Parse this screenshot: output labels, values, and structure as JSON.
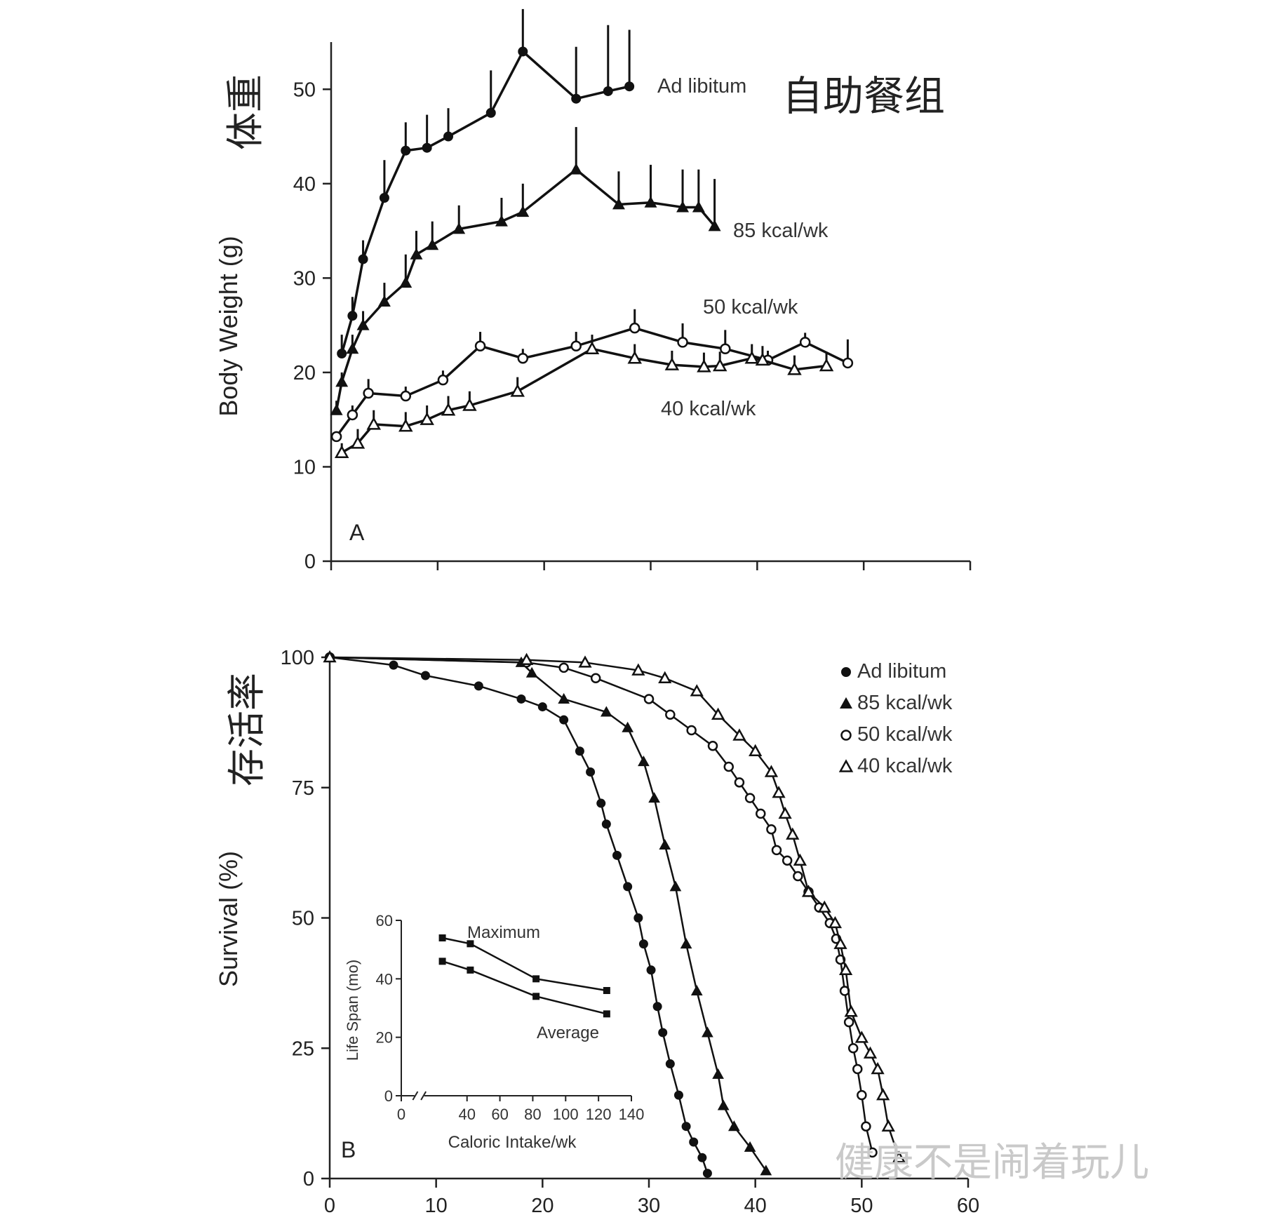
{
  "watermark": "健康不是闹着玩儿",
  "chart_data": [
    {
      "type": "line",
      "panel_label": "A",
      "ylabel": "Body Weight (g)",
      "ylabel_cn": "体重",
      "xlim": [
        0,
        60
      ],
      "ylim": [
        0,
        55
      ],
      "yticks": [
        0,
        10,
        20,
        30,
        40,
        50
      ],
      "grid": false,
      "annotations": [
        {
          "text": "Ad libitum",
          "x": 31,
          "y": 50.5
        },
        {
          "text": "自助餐组",
          "x": 42.5,
          "y": 50
        },
        {
          "text": "85 kcal/wk",
          "x": 38,
          "y": 35.5
        },
        {
          "text": "50 kcal/wk",
          "x": 35,
          "y": 26.5
        },
        {
          "text": "40 kcal/wk",
          "x": 31,
          "y": 16.5
        }
      ],
      "series": [
        {
          "name": "Ad libitum",
          "marker": "filled-circle",
          "x": [
            1,
            2,
            3,
            5,
            7,
            9,
            11,
            15,
            18,
            23,
            26,
            28
          ],
          "y": [
            22,
            26,
            32,
            38.5,
            43.5,
            43.8,
            45,
            47.5,
            54,
            49,
            49.8,
            50.3
          ],
          "err": [
            2,
            2,
            2,
            4,
            3,
            3.5,
            3,
            4.5,
            4.5,
            5.5,
            7,
            6
          ]
        },
        {
          "name": "85 kcal/wk",
          "marker": "filled-triangle",
          "x": [
            0.5,
            1,
            2,
            3,
            5,
            7,
            8,
            9.5,
            12,
            16,
            18,
            23,
            27,
            30,
            33,
            34.5,
            36
          ],
          "y": [
            16,
            19,
            22.5,
            25,
            27.5,
            29.5,
            32.5,
            33.5,
            35.2,
            36,
            37,
            41.5,
            37.8,
            38,
            37.5,
            37.5,
            35.5
          ],
          "err": [
            1,
            1,
            1.5,
            1.5,
            2,
            3,
            2.5,
            2.5,
            2.5,
            2.5,
            3,
            4.5,
            3.5,
            4,
            4,
            4,
            5
          ]
        },
        {
          "name": "50 kcal/wk",
          "marker": "open-circle",
          "x": [
            0.5,
            2,
            3.5,
            7,
            10.5,
            14,
            18,
            23,
            28.5,
            33,
            37,
            41,
            44.5,
            48.5
          ],
          "y": [
            13.2,
            15.5,
            17.8,
            17.5,
            19.2,
            22.8,
            21.5,
            22.8,
            24.7,
            23.2,
            22.5,
            21.3,
            23.2,
            21
          ],
          "err": [
            0,
            1,
            1.5,
            1,
            1,
            1.5,
            1,
            1.5,
            2,
            2,
            2,
            1,
            1,
            2.5
          ]
        },
        {
          "name": "40 kcal/wk",
          "marker": "open-triangle",
          "x": [
            1,
            2.5,
            4,
            7,
            9,
            11,
            13,
            17.5,
            24.5,
            28.5,
            32,
            35,
            36.5,
            39.5,
            40.5,
            43.5,
            46.5
          ],
          "y": [
            11.5,
            12.5,
            14.5,
            14.3,
            15,
            16,
            16.5,
            18,
            22.5,
            21.5,
            20.8,
            20.6,
            20.7,
            21.5,
            21.3,
            20.3,
            20.7
          ],
          "err": [
            1,
            1.5,
            1.5,
            1.5,
            1.5,
            1.5,
            1.5,
            1.5,
            1.5,
            1.5,
            1.5,
            1.5,
            1.5,
            1.5,
            1.5,
            1.5,
            1.5
          ]
        }
      ]
    },
    {
      "type": "line",
      "panel_label": "B",
      "ylabel": "Survival (%)",
      "ylabel_cn": "存活率",
      "xlim": [
        0,
        60
      ],
      "ylim": [
        0,
        100
      ],
      "xticks": [
        0,
        10,
        20,
        30,
        40,
        50,
        60
      ],
      "yticks": [
        0,
        25,
        50,
        75,
        100
      ],
      "grid": false,
      "legend": "top-right",
      "series": [
        {
          "name": "Ad libitum",
          "marker": "filled-circle",
          "x": [
            0,
            6,
            9,
            14,
            18,
            20,
            22,
            23.5,
            24.5,
            25.5,
            26,
            27,
            28,
            29,
            29.5,
            30.2,
            30.8,
            31.3,
            32,
            32.8,
            33.5,
            34.2,
            35,
            35.5
          ],
          "y": [
            100,
            98.5,
            96.5,
            94.5,
            92,
            90.5,
            88,
            82,
            78,
            72,
            68,
            62,
            56,
            50,
            45,
            40,
            33,
            28,
            22,
            16,
            10,
            7,
            4,
            1
          ]
        },
        {
          "name": "85 kcal/wk",
          "marker": "filled-triangle",
          "x": [
            0,
            18,
            19,
            22,
            26,
            28,
            29.5,
            30.5,
            31.5,
            32.5,
            33.5,
            34.5,
            35.5,
            36.5,
            37,
            38,
            39.5,
            41
          ],
          "y": [
            100,
            99,
            97,
            92,
            89.5,
            86.5,
            80,
            73,
            64,
            56,
            45,
            36,
            28,
            20,
            14,
            10,
            6,
            1.5
          ]
        },
        {
          "name": "50 kcal/wk",
          "marker": "open-circle",
          "x": [
            0,
            18.5,
            22,
            25,
            30,
            32,
            34,
            36,
            37.5,
            38.5,
            39.5,
            40.5,
            41.5,
            42,
            43,
            44,
            45,
            46,
            47,
            47.6,
            48,
            48.4,
            48.8,
            49.2,
            49.6,
            50,
            50.4,
            51
          ],
          "y": [
            100,
            99,
            98,
            96,
            92,
            89,
            86,
            83,
            79,
            76,
            73,
            70,
            67,
            63,
            61,
            58,
            55,
            52,
            49,
            46,
            42,
            36,
            30,
            25,
            21,
            16,
            10,
            5
          ]
        },
        {
          "name": "40 kcal/wk",
          "marker": "open-triangle",
          "x": [
            0,
            18.5,
            24,
            29,
            31.5,
            34.5,
            36.5,
            38.5,
            40,
            41.5,
            42.2,
            42.8,
            43.5,
            44.2,
            45,
            46.5,
            47.5,
            48,
            48.5,
            49,
            50,
            50.8,
            51.5,
            52,
            52.5,
            53.5
          ],
          "y": [
            100,
            99.5,
            99,
            97.5,
            96,
            93.5,
            89,
            85,
            82,
            78,
            74,
            70,
            66,
            61,
            55,
            52,
            49,
            45,
            40,
            32,
            27,
            24,
            21,
            16,
            10,
            4
          ]
        }
      ],
      "inset": {
        "type": "line",
        "xlabel": "Caloric Intake/wk",
        "ylabel": "Life Span (mo)",
        "xlim": [
          0,
          140
        ],
        "ylim": [
          0,
          60
        ],
        "xticks": [
          0,
          40,
          60,
          80,
          100,
          120,
          140
        ],
        "yticks": [
          0,
          20,
          40,
          60
        ],
        "series": [
          {
            "name": "Maximum",
            "x": [
              25,
              42,
              82,
              125
            ],
            "y": [
              54,
              52,
              40,
              36
            ]
          },
          {
            "name": "Average",
            "x": [
              25,
              42,
              82,
              125
            ],
            "y": [
              46,
              43,
              34,
              28
            ]
          }
        ]
      }
    }
  ]
}
